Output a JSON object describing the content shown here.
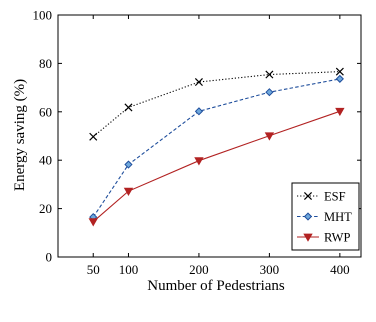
{
  "chart_data": {
    "type": "line",
    "title": "",
    "xlabel": "Number of Pedestrians",
    "ylabel": "Energy saving (%)",
    "x": [
      50,
      100,
      200,
      300,
      400
    ],
    "xlim": [
      0,
      430
    ],
    "ylim": [
      0,
      100
    ],
    "xticks": [
      50,
      100,
      200,
      300,
      400
    ],
    "yticks": [
      0,
      20,
      40,
      60,
      80,
      100
    ],
    "grid": false,
    "legend_position": "bottom-right",
    "series": [
      {
        "name": "ESF",
        "values": [
          49.7,
          61.8,
          72.3,
          75.4,
          76.6
        ],
        "color": "#000000",
        "line_style": "dotted",
        "marker": "x"
      },
      {
        "name": "MHT",
        "values": [
          16.5,
          38.2,
          60.2,
          68.1,
          73.6
        ],
        "color": "#1f4e9c",
        "line_style": "dashed",
        "marker": "diamond"
      },
      {
        "name": "RWP",
        "values": [
          14.6,
          27.2,
          39.8,
          50.1,
          60.2
        ],
        "color": "#b22222",
        "line_style": "solid",
        "marker": "triangle-down"
      }
    ]
  }
}
